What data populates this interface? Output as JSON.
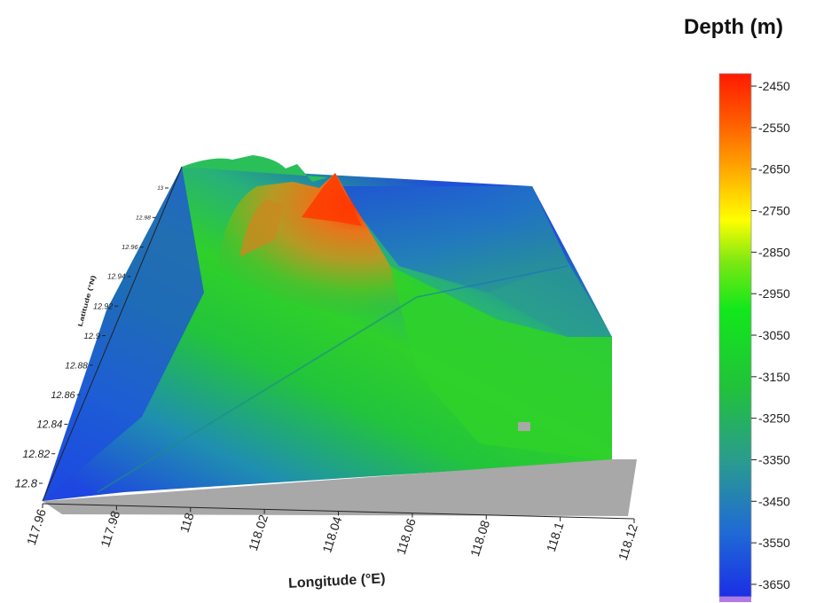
{
  "chart_data": {
    "type": "surface",
    "title": "",
    "xlabel": "Longitude (°E)",
    "ylabel": "Latitude (°N)",
    "x_ticks": [
      "117.96",
      "117.98",
      "118",
      "118.02",
      "118.04",
      "118.06",
      "118.08",
      "118.1",
      "118.12"
    ],
    "y_ticks": [
      "12.8",
      "12.82",
      "12.84",
      "12.86",
      "12.88",
      "12.9",
      "12.92",
      "12.94",
      "12.96",
      "12.98",
      "13"
    ],
    "xlim": [
      117.96,
      118.12
    ],
    "ylim": [
      12.8,
      13.0
    ],
    "colorbar": {
      "title": "Depth (m)",
      "ticks": [
        "-2450",
        "-2550",
        "-2650",
        "-2750",
        "-2850",
        "-2950",
        "-3050",
        "-3150",
        "-3250",
        "-3350",
        "-3450",
        "-3550",
        "-3650"
      ],
      "range": [
        -3680,
        -2420
      ],
      "colors": [
        "#b07ae8",
        "#1b2ee6",
        "#1f69d6",
        "#2a9c8e",
        "#21c23a",
        "#12e81b",
        "#7ce812",
        "#ffff00",
        "#ffa500",
        "#ff5a00",
        "#ff1a00"
      ]
    },
    "features": {
      "summit_depth": -2440,
      "summit_lon": 118.04,
      "summit_lat": 12.99
    }
  }
}
